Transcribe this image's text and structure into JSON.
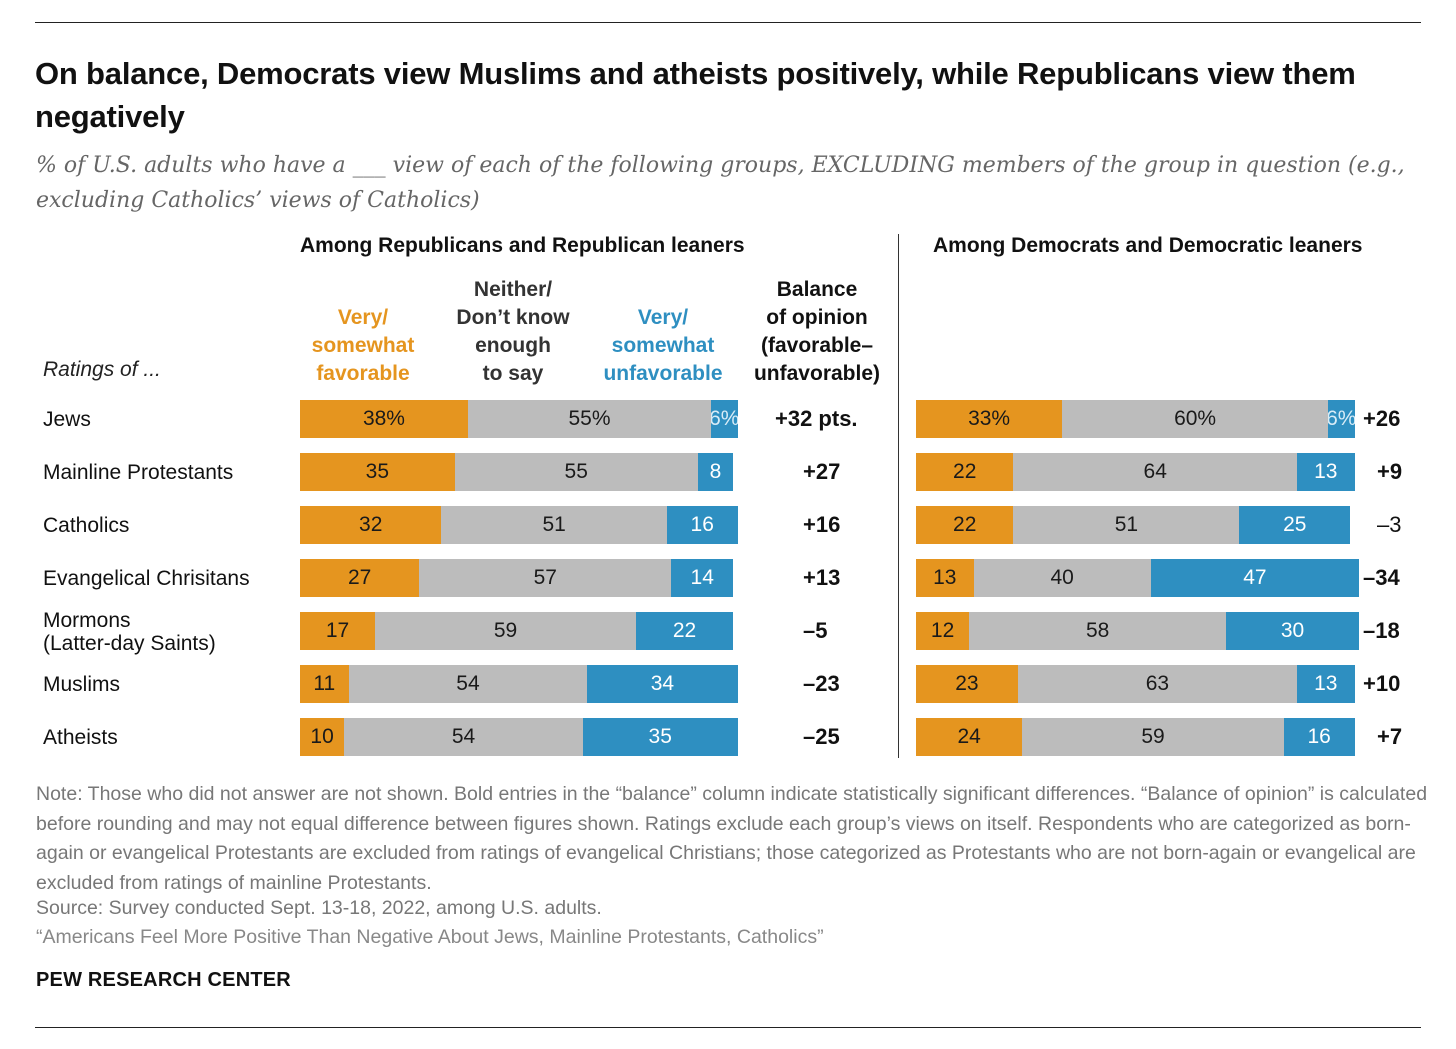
{
  "title": "On balance, Democrats view Muslims and atheists positively, while Republicans view them negatively",
  "subtitle": "% of U.S. adults who have a ___ view of each of the following groups, EXCLUDING members of the group in question (e.g., excluding Catholics’ views of Catholics)",
  "ratings_of_label": "Ratings of ...",
  "column_headers": {
    "favorable": "Very/\nsomewhat\nfavorable",
    "neither": "Neither/\nDon’t know\nenough\nto say",
    "unfavorable": "Very/\nsomewhat\nunfavorable",
    "balance": "Balance\nof opinion\n(favorable–\nunfavorable)"
  },
  "colors": {
    "favorable": "#e5951f",
    "neither": "#bcbcbc",
    "unfavorable": "#2e8fc1"
  },
  "note": "Note: Those who did not answer are not shown. Bold entries in the “balance” column indicate statistically significant differences. “Balance of opinion” is calculated before rounding and may not equal difference between figures shown. Ratings exclude each group’s views on itself. Respondents who are categorized as born-again or evangelical Protestants are excluded from ratings of evangelical Christians; those categorized as Protestants who are not born-again or evangelical are excluded from ratings of mainline Protestants.",
  "source": "Source: Survey conducted Sept. 13-18, 2022, among U.S. adults.",
  "report": "“Americans Feel More Positive Than Negative About Jews, Mainline Protestants, Catholics”",
  "brand": "PEW RESEARCH CENTER",
  "chart_data": [
    {
      "type": "bar",
      "stacked": true,
      "orientation": "horizontal",
      "title": "Among Republicans and Republican leaners",
      "categories": [
        "Jews",
        "Mainline Protestants",
        "Catholics",
        "Evangelical Chrisitans",
        "Mormons\n(Latter-day Saints)",
        "Muslims",
        "Atheists"
      ],
      "series": [
        {
          "name": "Very/ somewhat favorable",
          "values": [
            38,
            35,
            32,
            27,
            17,
            11,
            10
          ]
        },
        {
          "name": "Neither/ Don’t know enough to say",
          "values": [
            55,
            55,
            51,
            57,
            59,
            54,
            54
          ]
        },
        {
          "name": "Very/ somewhat unfavorable",
          "values": [
            6,
            8,
            16,
            14,
            22,
            34,
            35
          ]
        }
      ],
      "value_labels": [
        [
          "38%",
          "55%",
          "6%"
        ],
        [
          "35",
          "55",
          "8"
        ],
        [
          "32",
          "51",
          "16"
        ],
        [
          "27",
          "57",
          "14"
        ],
        [
          "17",
          "59",
          "22"
        ],
        [
          "11",
          "54",
          "34"
        ],
        [
          "10",
          "54",
          "35"
        ]
      ],
      "balance": [
        "+32 pts.",
        "+27",
        "+16",
        "+13",
        "–5",
        "–23",
        "–25"
      ],
      "balance_bold": [
        true,
        true,
        true,
        true,
        true,
        true,
        true
      ]
    },
    {
      "type": "bar",
      "stacked": true,
      "orientation": "horizontal",
      "title": "Among Democrats and Democratic leaners",
      "categories": [
        "Jews",
        "Mainline Protestants",
        "Catholics",
        "Evangelical Chrisitans",
        "Mormons\n(Latter-day Saints)",
        "Muslims",
        "Atheists"
      ],
      "series": [
        {
          "name": "Very/ somewhat favorable",
          "values": [
            33,
            22,
            22,
            13,
            12,
            23,
            24
          ]
        },
        {
          "name": "Neither/ Don’t know enough to say",
          "values": [
            60,
            64,
            51,
            40,
            58,
            63,
            59
          ]
        },
        {
          "name": "Very/ somewhat unfavorable",
          "values": [
            6,
            13,
            25,
            47,
            30,
            13,
            16
          ]
        }
      ],
      "value_labels": [
        [
          "33%",
          "60%",
          "6%"
        ],
        [
          "22",
          "64",
          "13"
        ],
        [
          "22",
          "51",
          "25"
        ],
        [
          "13",
          "40",
          "47"
        ],
        [
          "12",
          "58",
          "30"
        ],
        [
          "23",
          "63",
          "13"
        ],
        [
          "24",
          "59",
          "16"
        ]
      ],
      "balance": [
        "+26",
        "+9",
        "–3",
        "–34",
        "–18",
        "+10",
        "+7"
      ],
      "balance_bold": [
        true,
        true,
        false,
        true,
        true,
        true,
        true
      ]
    }
  ]
}
